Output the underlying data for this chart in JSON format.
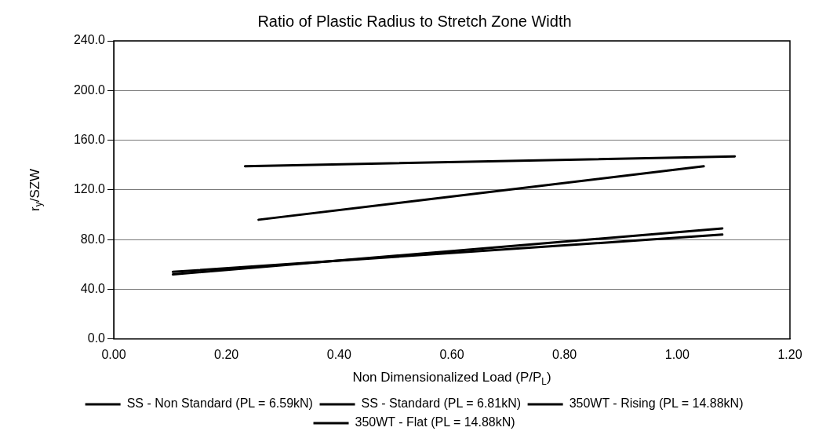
{
  "chart_data": {
    "type": "line",
    "title": "Ratio of Plastic Radius to Stretch Zone Width",
    "xlabel": "Non Dimensionalized Load (P/P$_{L}$)",
    "ylabel": "r$_{y}$/SZW",
    "series": [
      {
        "name": "SS - Non Standard (PL = 6.59kN)",
        "color": "#000000",
        "x": [
          0.105,
          1.08
        ],
        "values": [
          52,
          89
        ]
      },
      {
        "name": "SS - Standard (PL = 6.81kN)",
        "color": "#000000",
        "x": [
          0.105,
          1.08
        ],
        "values": [
          54,
          84
        ]
      },
      {
        "name": "350WT - Rising (PL = 14.88kN)",
        "color": "#000000",
        "x": [
          0.257,
          1.047
        ],
        "values": [
          96,
          139
        ]
      },
      {
        "name": "350WT - Flat (PL = 14.88kN)",
        "color": "#000000",
        "x": [
          0.233,
          1.102
        ],
        "values": [
          139,
          147
        ]
      }
    ],
    "xlim": [
      0,
      1.2
    ],
    "xticks": [
      {
        "value": 0,
        "label": "0.00"
      },
      {
        "value": 0.2,
        "label": "0.20"
      },
      {
        "value": 0.4,
        "label": "0.40"
      },
      {
        "value": 0.6,
        "label": "0.60"
      },
      {
        "value": 0.8,
        "label": "0.80"
      },
      {
        "value": 1,
        "label": "1.00"
      },
      {
        "value": 1.2,
        "label": "1.20"
      }
    ],
    "ylim": [
      0,
      240
    ],
    "yticks": [
      {
        "value": 0,
        "label": "0.0"
      },
      {
        "value": 40,
        "label": "40.0"
      },
      {
        "value": 80,
        "label": "80.0"
      },
      {
        "value": 120,
        "label": "120.0"
      },
      {
        "value": 160,
        "label": "160.0"
      },
      {
        "value": 200,
        "label": "200.0"
      },
      {
        "value": 240,
        "label": "240.0"
      }
    ],
    "grid": "y",
    "legend": "bottom",
    "marker": "none",
    "line_style": "solid"
  }
}
